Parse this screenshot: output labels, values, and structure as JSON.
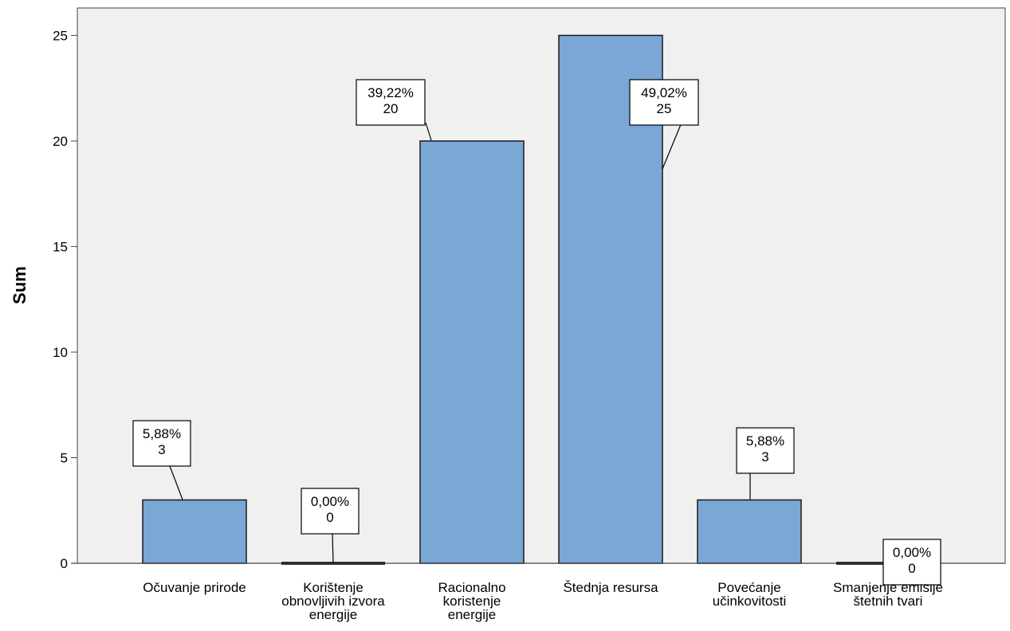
{
  "chart_data": {
    "type": "bar",
    "ylabel": "Sum",
    "xlabel": "",
    "ylim": [
      0,
      26.3
    ],
    "yticks": [
      0,
      5,
      10,
      15,
      20,
      25
    ],
    "grid": false,
    "legend": "none",
    "bar_color": "#7ba7d6",
    "plot_background": "#f0f0f0",
    "categories": [
      [
        "Očuvanje prirode"
      ],
      [
        "Korištenje",
        "obnovljivih izvora",
        "energije"
      ],
      [
        "Racionalno",
        "koristenje",
        "energije"
      ],
      [
        "Štednja resursa"
      ],
      [
        "Povećanje",
        "učinkovitosti"
      ],
      [
        "Smanjenje emisije",
        "štetnih tvari"
      ]
    ],
    "values": [
      3,
      0,
      20,
      25,
      3,
      0
    ],
    "percent_labels": [
      "5,88%",
      "0,00%",
      "39,22%",
      "49,02%",
      "5,88%",
      "0,00%"
    ],
    "count_labels": [
      "3",
      "0",
      "20",
      "25",
      "3",
      "0"
    ]
  }
}
